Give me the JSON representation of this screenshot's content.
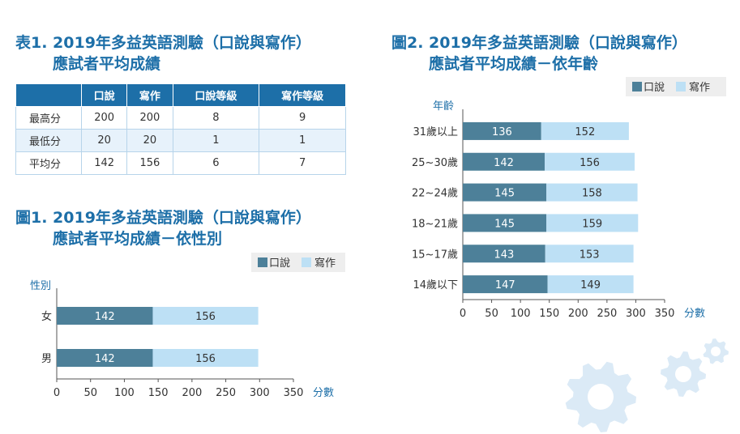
{
  "colors": {
    "title": "#1d6fa8",
    "spoken": "#4d8099",
    "written": "#bde0f5",
    "header_bg": "#1d6fa8",
    "gear": "#dbeaf6"
  },
  "table1": {
    "title_line1": "表1. 2019年多益英語測驗（口說與寫作）",
    "title_line2": "應試者平均成績",
    "headers": [
      "",
      "口說",
      "寫作",
      "口說等級",
      "寫作等級"
    ],
    "rows": [
      [
        "最高分",
        "200",
        "200",
        "8",
        "9"
      ],
      [
        "最低分",
        "20",
        "20",
        "1",
        "1"
      ],
      [
        "平均分",
        "142",
        "156",
        "6",
        "7"
      ]
    ]
  },
  "figure1": {
    "title_line1": "圖1. 2019年多益英語測驗（口說與寫作）",
    "title_line2": "應試者平均成績－依性別"
  },
  "figure2": {
    "title_line1": "圖2. 2019年多益英語測驗（口說與寫作）",
    "title_line2": "應試者平均成績－依年齡"
  },
  "chart_data": [
    {
      "type": "bar",
      "orientation": "horizontal",
      "stacked": true,
      "categories": [
        "女",
        "男"
      ],
      "series": [
        {
          "name": "口說",
          "values": [
            142,
            142
          ]
        },
        {
          "name": "寫作",
          "values": [
            156,
            156
          ]
        }
      ],
      "ylabel": "性別",
      "xlabel": "分數",
      "xlim": [
        0,
        350
      ],
      "xticks": [
        0,
        50,
        100,
        150,
        200,
        250,
        300,
        350
      ],
      "legend": "top-right",
      "grid": false
    },
    {
      "type": "bar",
      "orientation": "horizontal",
      "stacked": true,
      "categories": [
        "31歲以上",
        "25~30歲",
        "22~24歲",
        "18~21歲",
        "15~17歲",
        "14歲以下"
      ],
      "series": [
        {
          "name": "口說",
          "values": [
            136,
            142,
            145,
            145,
            143,
            147
          ]
        },
        {
          "name": "寫作",
          "values": [
            152,
            156,
            158,
            159,
            153,
            149
          ]
        }
      ],
      "ylabel": "年齡",
      "xlabel": "分數",
      "xlim": [
        0,
        350
      ],
      "xticks": [
        0,
        50,
        100,
        150,
        200,
        250,
        300,
        350
      ],
      "legend": "top-right",
      "grid": false
    }
  ]
}
